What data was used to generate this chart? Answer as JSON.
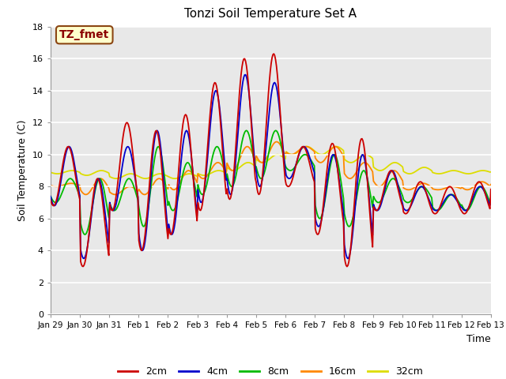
{
  "title": "Tonzi Soil Temperature Set A",
  "xlabel": "Time",
  "ylabel": "Soil Temperature (C)",
  "annotation": "TZ_fmet",
  "ylim": [
    0,
    18
  ],
  "yticks": [
    0,
    2,
    4,
    6,
    8,
    10,
    12,
    14,
    16,
    18
  ],
  "plot_bg": "#e8e8e8",
  "fig_bg": "#ffffff",
  "grid_color": "#ffffff",
  "series_colors": [
    "#cc0000",
    "#0000cc",
    "#00bb00",
    "#ff8800",
    "#dddd00"
  ],
  "series_labels": [
    "2cm",
    "4cm",
    "8cm",
    "16cm",
    "32cm"
  ],
  "xtick_labels": [
    "Jan 29",
    "Jan 30",
    "Jan 31",
    "Feb 1",
    "Feb 2",
    "Feb 3",
    "Feb 4",
    "Feb 5",
    "Feb 6",
    "Feb 7",
    "Feb 8",
    "Feb 9",
    "Feb 10",
    "Feb 11",
    "Feb 12",
    "Feb 13"
  ],
  "peaks_2cm": [
    10.5,
    8.5,
    12.0,
    11.5,
    12.5,
    14.5,
    16.0,
    16.3,
    10.5,
    10.7,
    11.0,
    9.0,
    8.3,
    8.0,
    8.3,
    8.0
  ],
  "troughs_2cm": [
    6.8,
    3.0,
    6.5,
    4.0,
    5.0,
    6.5,
    7.2,
    7.5,
    8.0,
    5.0,
    3.0,
    6.5,
    6.3,
    6.3,
    6.3,
    6.2
  ],
  "peaks_4cm": [
    10.5,
    8.5,
    10.5,
    11.5,
    11.5,
    14.0,
    15.0,
    14.5,
    10.5,
    10.0,
    10.0,
    9.0,
    8.0,
    7.5,
    8.0,
    7.5
  ],
  "troughs_4cm": [
    6.8,
    3.5,
    6.5,
    4.0,
    5.0,
    7.0,
    7.5,
    8.0,
    8.5,
    5.5,
    3.5,
    6.5,
    6.5,
    6.5,
    6.5,
    6.3
  ],
  "peaks_8cm": [
    8.5,
    8.5,
    8.5,
    10.5,
    9.5,
    10.5,
    11.5,
    11.5,
    10.0,
    10.0,
    9.0,
    8.5,
    8.0,
    7.5,
    8.0,
    7.5
  ],
  "troughs_8cm": [
    7.0,
    5.0,
    6.5,
    5.5,
    6.5,
    7.5,
    8.0,
    8.5,
    9.0,
    6.0,
    5.5,
    7.0,
    7.0,
    6.5,
    6.5,
    6.5
  ],
  "peaks_16cm": [
    8.2,
    8.5,
    8.0,
    8.5,
    9.0,
    9.5,
    10.5,
    10.8,
    10.5,
    10.5,
    9.5,
    9.0,
    8.2,
    8.0,
    8.3,
    8.3
  ],
  "troughs_16cm": [
    8.0,
    7.5,
    7.5,
    7.5,
    7.8,
    8.5,
    9.0,
    9.5,
    10.0,
    9.5,
    8.5,
    8.0,
    7.8,
    7.8,
    7.8,
    7.8
  ],
  "peaks_32cm": [
    9.0,
    9.0,
    8.8,
    8.8,
    8.8,
    9.0,
    9.5,
    10.0,
    10.5,
    10.5,
    10.0,
    9.5,
    9.2,
    9.0,
    9.0,
    9.0
  ],
  "troughs_32cm": [
    8.8,
    8.7,
    8.5,
    8.5,
    8.5,
    8.7,
    9.0,
    9.5,
    10.0,
    10.0,
    9.5,
    9.0,
    8.8,
    8.8,
    8.8,
    8.8
  ]
}
